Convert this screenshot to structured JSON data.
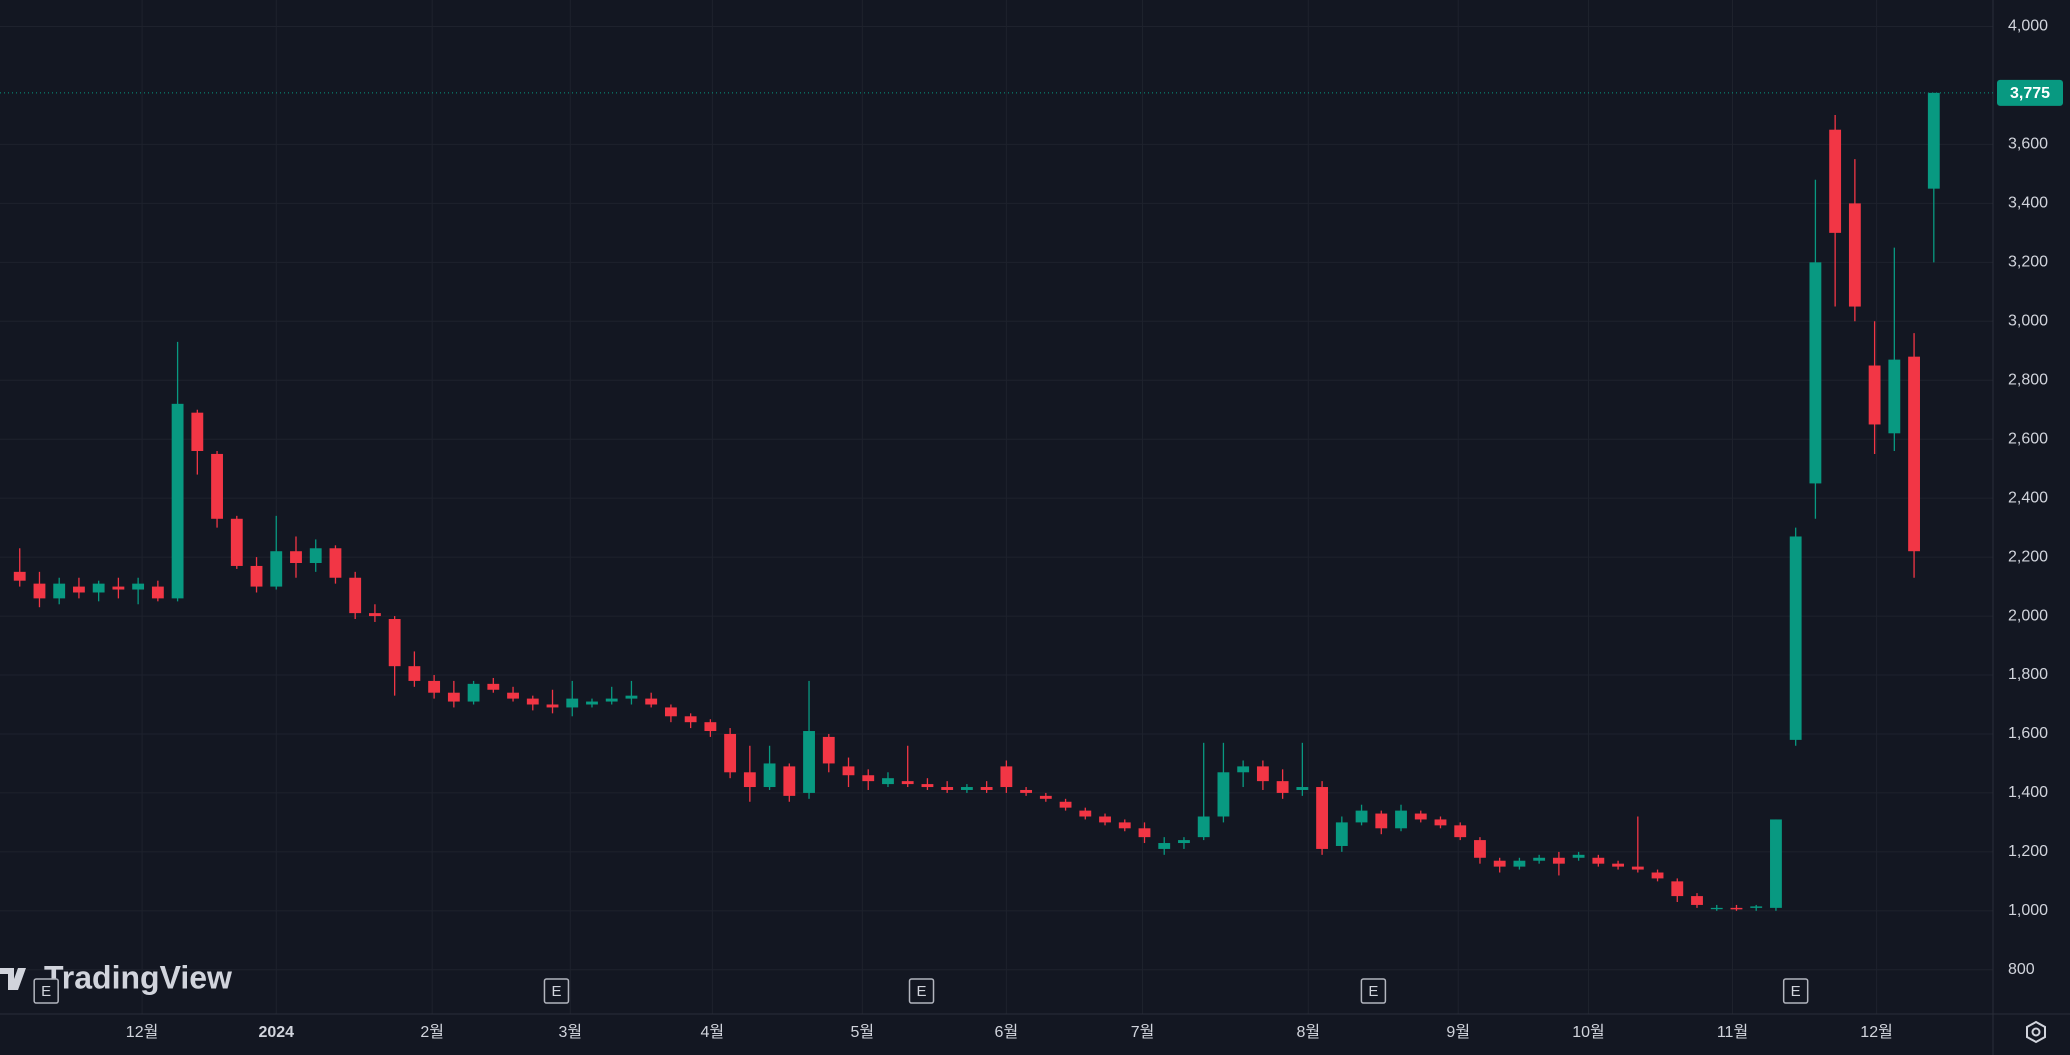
{
  "chart_data": {
    "type": "candlestick",
    "up_color": "#089981",
    "down_color": "#f23645",
    "open": [
      2150,
      2110,
      2060,
      2100,
      2080,
      2100,
      2090,
      2100,
      2060,
      2690,
      2550,
      2330,
      2170,
      2100,
      2220,
      2180,
      2230,
      2130,
      2010,
      1990,
      1830,
      1780,
      1740,
      1710,
      1770,
      1740,
      1720,
      1700,
      1690,
      1700,
      1710,
      1720,
      1720,
      1690,
      1660,
      1640,
      1600,
      1470,
      1420,
      1490,
      1400,
      1590,
      1490,
      1460,
      1430,
      1440,
      1430,
      1420,
      1410,
      1420,
      1490,
      1410,
      1390,
      1370,
      1340,
      1320,
      1300,
      1280,
      1210,
      1230,
      1250,
      1320,
      1470,
      1490,
      1440,
      1410,
      1420,
      1220,
      1300,
      1330,
      1280,
      1330,
      1310,
      1290,
      1240,
      1170,
      1150,
      1170,
      1180,
      1180,
      1180,
      1160,
      1150,
      1130,
      1100,
      1050,
      1010,
      1010,
      1010,
      1010,
      1580,
      2450,
      3650,
      3400,
      2850,
      2620,
      2880,
      3450
    ],
    "high": [
      2230,
      2150,
      2130,
      2130,
      2120,
      2130,
      2130,
      2120,
      2930,
      2700,
      2560,
      2340,
      2200,
      2340,
      2270,
      2260,
      2240,
      2150,
      2040,
      2000,
      1880,
      1800,
      1780,
      1780,
      1790,
      1760,
      1730,
      1750,
      1780,
      1720,
      1760,
      1780,
      1740,
      1700,
      1670,
      1650,
      1620,
      1560,
      1560,
      1500,
      1780,
      1600,
      1520,
      1480,
      1470,
      1560,
      1450,
      1440,
      1430,
      1440,
      1510,
      1420,
      1400,
      1380,
      1350,
      1330,
      1310,
      1300,
      1250,
      1250,
      1570,
      1570,
      1510,
      1510,
      1480,
      1570,
      1440,
      1320,
      1360,
      1340,
      1360,
      1340,
      1320,
      1300,
      1250,
      1180,
      1180,
      1190,
      1200,
      1200,
      1190,
      1170,
      1320,
      1140,
      1110,
      1060,
      1020,
      1020,
      1020,
      1310,
      2300,
      3480,
      3700,
      3550,
      3000,
      3250,
      2960,
      3775
    ],
    "low": [
      2100,
      2030,
      2040,
      2060,
      2050,
      2060,
      2040,
      2050,
      2050,
      2480,
      2300,
      2160,
      2080,
      2090,
      2130,
      2150,
      2110,
      1990,
      1980,
      1730,
      1760,
      1720,
      1690,
      1700,
      1740,
      1710,
      1680,
      1670,
      1660,
      1690,
      1700,
      1700,
      1690,
      1640,
      1620,
      1590,
      1450,
      1370,
      1410,
      1370,
      1380,
      1470,
      1420,
      1410,
      1420,
      1420,
      1410,
      1400,
      1400,
      1400,
      1400,
      1390,
      1370,
      1340,
      1310,
      1290,
      1270,
      1230,
      1190,
      1210,
      1240,
      1300,
      1420,
      1410,
      1380,
      1390,
      1190,
      1200,
      1290,
      1260,
      1270,
      1300,
      1280,
      1240,
      1160,
      1130,
      1140,
      1160,
      1120,
      1170,
      1150,
      1140,
      1130,
      1100,
      1030,
      1010,
      1000,
      1000,
      1000,
      1000,
      1560,
      2330,
      3050,
      3000,
      2550,
      2560,
      2130,
      3200
    ],
    "close": [
      2120,
      2060,
      2110,
      2080,
      2110,
      2090,
      2110,
      2060,
      2720,
      2560,
      2330,
      2170,
      2100,
      2220,
      2180,
      2230,
      2130,
      2010,
      2000,
      1830,
      1780,
      1740,
      1710,
      1770,
      1750,
      1720,
      1700,
      1690,
      1720,
      1710,
      1720,
      1730,
      1700,
      1660,
      1640,
      1610,
      1470,
      1420,
      1500,
      1390,
      1610,
      1500,
      1460,
      1440,
      1450,
      1430,
      1420,
      1410,
      1420,
      1410,
      1420,
      1400,
      1380,
      1350,
      1320,
      1300,
      1280,
      1250,
      1230,
      1240,
      1320,
      1470,
      1490,
      1440,
      1400,
      1420,
      1210,
      1300,
      1340,
      1280,
      1340,
      1310,
      1290,
      1250,
      1180,
      1150,
      1170,
      1180,
      1160,
      1190,
      1160,
      1150,
      1140,
      1110,
      1050,
      1020,
      1010,
      1005,
      1015,
      1310,
      2270,
      3200,
      3300,
      3050,
      2650,
      2870,
      2220,
      3775
    ],
    "xlim": [
      -1,
      100
    ],
    "xticks": [
      {
        "value": 6.2,
        "label": "12월"
      },
      {
        "value": 13,
        "label": "2024"
      },
      {
        "value": 20.9,
        "label": "2월"
      },
      {
        "value": 27.9,
        "label": "3월"
      },
      {
        "value": 35.1,
        "label": "4월"
      },
      {
        "value": 42.7,
        "label": "5월"
      },
      {
        "value": 50,
        "label": "6월"
      },
      {
        "value": 56.9,
        "label": "7월"
      },
      {
        "value": 65.3,
        "label": "8월"
      },
      {
        "value": 72.9,
        "label": "9월"
      },
      {
        "value": 79.5,
        "label": "10월"
      },
      {
        "value": 86.8,
        "label": "11월"
      },
      {
        "value": 94.1,
        "label": "12월"
      }
    ],
    "ylim": [
      650,
      4090
    ],
    "yticks": [
      800,
      {
        "value": 1000,
        "label": "1,000"
      },
      {
        "value": 1200,
        "label": "1,200"
      },
      {
        "value": 1400,
        "label": "1,400"
      },
      {
        "value": 1600,
        "label": "1,600"
      },
      {
        "value": 1800,
        "label": "1,800"
      },
      {
        "value": 2000,
        "label": "2,000"
      },
      {
        "value": 2200,
        "label": "2,200"
      },
      {
        "value": 2400,
        "label": "2,400"
      },
      {
        "value": 2600,
        "label": "2,600"
      },
      {
        "value": 2800,
        "label": "2,800"
      },
      {
        "value": 3000,
        "label": "3,000"
      },
      {
        "value": 3200,
        "label": "3,200"
      },
      {
        "value": 3400,
        "label": "3,400"
      },
      {
        "value": 3600,
        "label": "3,600"
      },
      {
        "value": 4000,
        "label": "4,000"
      }
    ],
    "grid": true,
    "last_price": {
      "value": 3775,
      "label": "3,775"
    },
    "events": [
      {
        "x": 1.34,
        "label": "E"
      },
      {
        "x": 27.2,
        "label": "E"
      },
      {
        "x": 45.7,
        "label": "E"
      },
      {
        "x": 68.6,
        "label": "E"
      },
      {
        "x": 90.0,
        "label": "E"
      }
    ]
  },
  "watermark": "TradingView"
}
